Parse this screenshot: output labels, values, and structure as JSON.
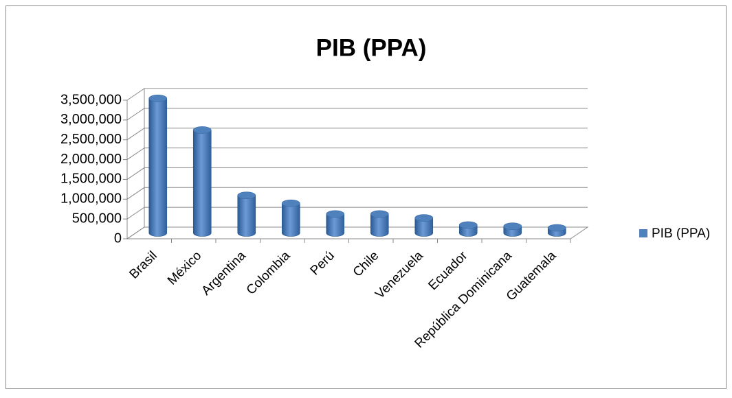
{
  "chart_data": {
    "type": "bar3d",
    "title": "PIB (PPA)",
    "categories": [
      "Brasil",
      "México",
      "Argentina",
      "Colombia",
      "Perú",
      "Chile",
      "Venezuela",
      "Ecuador",
      "República Dominicana",
      "Guatemala"
    ],
    "series": [
      {
        "name": "PIB (PPA)",
        "color": "#4f81bd",
        "values": [
          3400000,
          2600000,
          950000,
          750000,
          480000,
          480000,
          380000,
          200000,
          170000,
          130000
        ]
      }
    ],
    "ylim": [
      0,
      3500000
    ],
    "yticks": [
      {
        "value": 0,
        "label": "0"
      },
      {
        "value": 500000,
        "label": "500,000"
      },
      {
        "value": 1000000,
        "label": "1,000,000"
      },
      {
        "value": 1500000,
        "label": "1,500,000"
      },
      {
        "value": 2000000,
        "label": "2,000,000"
      },
      {
        "value": 2500000,
        "label": "2,500,000"
      },
      {
        "value": 3000000,
        "label": "3,000,000"
      },
      {
        "value": 3500000,
        "label": "3,500,000"
      }
    ],
    "grid": true,
    "legend": "right"
  }
}
